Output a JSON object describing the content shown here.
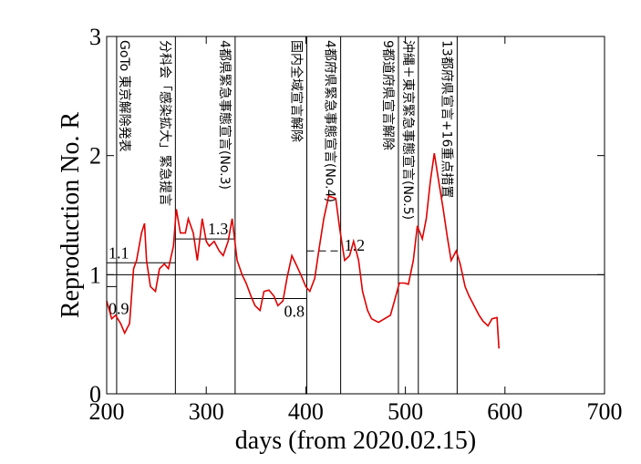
{
  "chart_data": {
    "type": "line",
    "x_label": "days   (from 2020.02.15)",
    "y_label": "Reproduction No.  R",
    "xlim": [
      200,
      700
    ],
    "xticks": [
      200,
      300,
      400,
      500,
      600,
      700
    ],
    "ylim": [
      0,
      3
    ],
    "yticks": [
      0,
      1,
      2,
      3
    ],
    "hline": 1,
    "series": [
      {
        "name": "R",
        "color": "#e00000",
        "x": [
          200,
          205,
          209,
          214,
          218,
          223,
          227,
          230,
          235,
          238,
          240,
          244,
          249,
          253,
          258,
          262,
          267,
          270,
          274,
          279,
          282,
          287,
          291,
          296,
          300,
          303,
          308,
          313,
          317,
          322,
          326,
          331,
          336,
          340,
          345,
          349,
          354,
          358,
          363,
          368,
          372,
          377,
          381,
          386,
          390,
          395,
          400,
          404,
          409,
          413,
          418,
          423,
          430,
          434,
          439,
          444,
          448,
          453,
          457,
          462,
          466,
          473,
          479,
          485,
          489,
          494,
          499,
          503,
          508,
          512,
          517,
          521,
          525,
          529,
          533,
          538,
          542,
          546,
          551,
          555,
          560,
          564,
          569,
          574,
          578,
          583,
          587,
          592,
          594
        ],
        "values": [
          0.78,
          0.63,
          0.66,
          0.59,
          0.51,
          0.59,
          1.05,
          1.12,
          1.35,
          1.43,
          1.12,
          0.9,
          0.86,
          1.05,
          1.09,
          1.05,
          1.24,
          1.55,
          1.35,
          1.35,
          1.47,
          1.35,
          1.12,
          1.47,
          1.28,
          1.24,
          1.28,
          1.2,
          1.16,
          1.28,
          1.47,
          1.12,
          1.0,
          0.93,
          0.82,
          0.74,
          0.7,
          0.86,
          0.87,
          0.82,
          0.74,
          0.78,
          0.97,
          1.16,
          1.09,
          1.0,
          0.9,
          0.86,
          0.97,
          1.2,
          1.47,
          1.66,
          1.64,
          1.39,
          1.12,
          1.16,
          1.28,
          1.12,
          0.86,
          0.7,
          0.63,
          0.6,
          0.63,
          0.66,
          0.78,
          0.93,
          0.93,
          0.92,
          1.12,
          1.41,
          1.3,
          1.47,
          1.78,
          2.02,
          1.81,
          1.55,
          1.32,
          1.12,
          1.2,
          1.09,
          0.9,
          0.82,
          0.74,
          0.66,
          0.61,
          0.57,
          0.63,
          0.64,
          0.38
        ]
      }
    ],
    "events": [
      {
        "x": 210,
        "text": "GoTo 東京解除発表"
      },
      {
        "x": 269,
        "text": "分科会「感染拡大」緊急提言"
      },
      {
        "x": 329,
        "text": "4都県緊急事態宣言(No.3)"
      },
      {
        "x": 401,
        "text": "国内全域宣言解除"
      },
      {
        "x": 435,
        "text": "4都府県緊急事態宣言(No.4)"
      },
      {
        "x": 493,
        "text": "9都道府県宣言解除"
      },
      {
        "x": 513,
        "text": "沖縄＋東京緊急事態宣言(No.5)"
      },
      {
        "x": 552,
        "text": "13都府県宣言+16重点措置"
      }
    ],
    "levels": [
      {
        "value": 1.1,
        "x": [
          200,
          269
        ]
      },
      {
        "value": 0.9,
        "x": [
          200,
          210
        ]
      },
      {
        "value": 1.3,
        "x": [
          269,
          329
        ]
      },
      {
        "value": 0.8,
        "x": [
          329,
          401
        ]
      },
      {
        "value": 1.2,
        "x": [
          401,
          435
        ],
        "dashed": true
      }
    ]
  }
}
